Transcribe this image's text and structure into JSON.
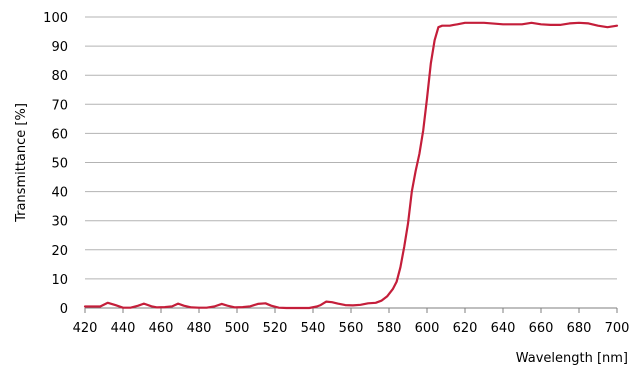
{
  "chart_data": {
    "type": "line",
    "title": "",
    "xlabel": "Wavelength [nm]",
    "ylabel": "Transmittance [%]",
    "xlim": [
      420,
      700
    ],
    "ylim": [
      0,
      100
    ],
    "x_ticks": [
      420,
      440,
      460,
      480,
      500,
      520,
      540,
      560,
      580,
      600,
      620,
      640,
      660,
      680,
      700
    ],
    "y_ticks": [
      0,
      10,
      20,
      30,
      40,
      50,
      60,
      70,
      80,
      90,
      100
    ],
    "grid": "horizontal",
    "line_color": "#c41e3a",
    "series": [
      {
        "x": [
          420,
          425,
          428,
          432,
          436,
          440,
          444,
          448,
          451,
          455,
          458,
          462,
          466,
          469,
          472,
          476,
          480,
          484,
          488,
          492,
          495,
          499,
          503,
          507,
          511,
          515,
          518,
          522,
          526,
          530,
          534,
          538,
          542,
          544,
          547,
          550,
          553,
          557,
          561,
          565,
          569,
          573,
          576,
          579,
          582,
          584,
          586,
          588,
          590,
          592,
          594,
          596,
          598,
          600,
          602,
          604,
          606,
          608,
          610,
          612,
          614,
          616,
          620,
          625,
          630,
          640,
          650,
          655,
          660,
          665,
          670,
          675,
          680,
          685,
          690,
          695,
          700
        ],
        "y": [
          0.5,
          0.5,
          0.5,
          1.8,
          1.0,
          0.1,
          0.1,
          0.8,
          1.5,
          0.6,
          0.2,
          0.3,
          0.6,
          1.5,
          0.8,
          0.2,
          0.1,
          0.1,
          0.5,
          1.4,
          0.8,
          0.2,
          0.3,
          0.6,
          1.4,
          1.6,
          0.8,
          0.1,
          0.0,
          0.0,
          0.0,
          0.0,
          0.5,
          1.0,
          2.2,
          2.0,
          1.5,
          1.0,
          0.9,
          1.1,
          1.6,
          1.8,
          2.5,
          4.0,
          6.5,
          9.0,
          14.0,
          21.0,
          29.0,
          40.0,
          47.0,
          53.0,
          61.0,
          72.0,
          84.0,
          92.0,
          96.5,
          97.0,
          97.0,
          97.0,
          97.3,
          97.5,
          98.0,
          98.0,
          98.0,
          97.5,
          97.5,
          98.0,
          97.5,
          97.3,
          97.3,
          97.8,
          98.0,
          97.8,
          97.0,
          96.5,
          97.0
        ]
      }
    ]
  }
}
